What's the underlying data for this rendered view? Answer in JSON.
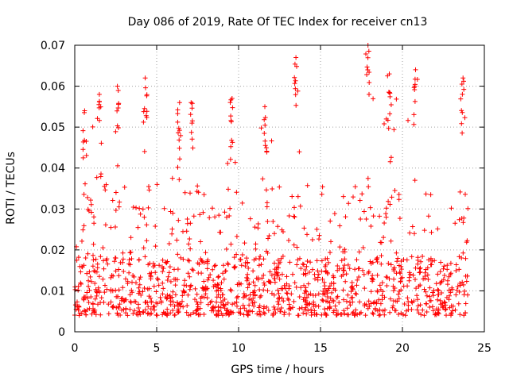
{
  "chart_data": {
    "type": "scatter",
    "title": "Day 086 of 2019, Rate Of TEC Index for receiver cn13",
    "xlabel": "GPS time / hours",
    "ylabel": "ROTI / TECUs",
    "xlim": [
      0,
      25
    ],
    "ylim": [
      0,
      0.07
    ],
    "x_ticks": [
      "0",
      "5",
      "10",
      "15",
      "20",
      "25"
    ],
    "y_ticks": [
      "0",
      "0.01",
      "0.02",
      "0.03",
      "0.04",
      "0.05",
      "0.06",
      "0.07"
    ],
    "grid": true,
    "marker": "+",
    "color": "#ff0000",
    "series": [
      {
        "x_range": [
          0,
          24
        ],
        "baseline_low": 0.004,
        "baseline_high": 0.018,
        "peaks": [
          {
            "x": 0.6,
            "y": 0.054
          },
          {
            "x": 1.5,
            "y": 0.058
          },
          {
            "x": 2.6,
            "y": 0.06
          },
          {
            "x": 4.3,
            "y": 0.062
          },
          {
            "x": 6.4,
            "y": 0.056
          },
          {
            "x": 7.1,
            "y": 0.056
          },
          {
            "x": 9.6,
            "y": 0.057
          },
          {
            "x": 11.6,
            "y": 0.055
          },
          {
            "x": 13.5,
            "y": 0.067
          },
          {
            "x": 17.9,
            "y": 0.07
          },
          {
            "x": 19.2,
            "y": 0.063
          },
          {
            "x": 20.8,
            "y": 0.064
          },
          {
            "x": 23.7,
            "y": 0.062
          }
        ]
      }
    ]
  }
}
